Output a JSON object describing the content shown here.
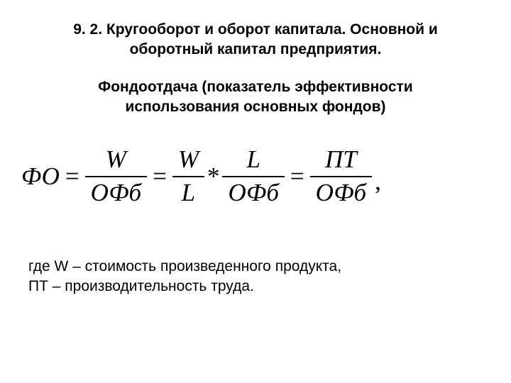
{
  "title": {
    "line1": "9. 2. Кругооборот и оборот капитала. Основной и",
    "line2": "оборотный капитал предприятия.",
    "fontsize": 21
  },
  "subtitle": {
    "line1": "Фондоотдача  (показатель эффективности",
    "line2": "использования основных фондов)",
    "fontsize": 21
  },
  "formula": {
    "fontsize": 35,
    "lhs": "ФО",
    "eq": "=",
    "mult": "*",
    "comma": ",",
    "frac1": {
      "num": "W",
      "den": "ОФб"
    },
    "frac2": {
      "num": "W",
      "den": "L"
    },
    "frac3": {
      "num": "L",
      "den": "ОФб"
    },
    "frac4": {
      "num": "ПТ",
      "den": "ОФб"
    }
  },
  "definitions": {
    "line1": "где W – стоимость произведенного продукта,",
    "line2": "ПТ – производительность труда.",
    "fontsize": 21
  },
  "colors": {
    "text": "#000000",
    "background": "#ffffff"
  }
}
